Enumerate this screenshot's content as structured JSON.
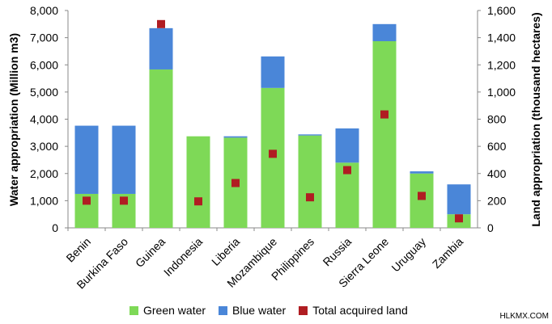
{
  "chart_data": {
    "type": "bar",
    "stacked": true,
    "categories": [
      "Benin",
      "Burkina Faso",
      "Guinea",
      "Indonesia",
      "Liberia",
      "Mozambique",
      "Philippines",
      "Russia",
      "Sierra Leone",
      "Uruguay",
      "Zambia"
    ],
    "series": [
      {
        "name": "Green water",
        "axis": "left",
        "values": [
          1250,
          1250,
          5830,
          3370,
          3320,
          5150,
          3400,
          2400,
          6870,
          2000,
          500
        ],
        "color": "#7ed957"
      },
      {
        "name": "Blue water",
        "axis": "left",
        "values": [
          2510,
          2510,
          1520,
          0,
          50,
          1160,
          40,
          1260,
          630,
          80,
          1100
        ],
        "color": "#4a86d8"
      },
      {
        "name": "Total acquired land",
        "axis": "right",
        "type": "scatter",
        "values": [
          200,
          200,
          1500,
          195,
          330,
          545,
          225,
          425,
          835,
          235,
          70
        ],
        "color": "#b01d22"
      }
    ],
    "yaxis_left": {
      "label": "Water appropriation (Million m3)",
      "min": 0,
      "max": 8000,
      "ticks": [
        "0",
        "1,000",
        "2,000",
        "3,000",
        "4,000",
        "5,000",
        "6,000",
        "7,000",
        "8,000"
      ]
    },
    "yaxis_right": {
      "label": "Land appropriation (thousand hectares)",
      "min": 0,
      "max": 1600,
      "ticks": [
        "0",
        "200",
        "400",
        "600",
        "800",
        "1,000",
        "1,200",
        "1,400",
        "1,600"
      ]
    },
    "legend_position": "bottom",
    "grid": false
  },
  "legend": {
    "green": "Green water",
    "blue": "Blue water",
    "land": "Total acquired land"
  },
  "watermark": "HLKMX.COM"
}
